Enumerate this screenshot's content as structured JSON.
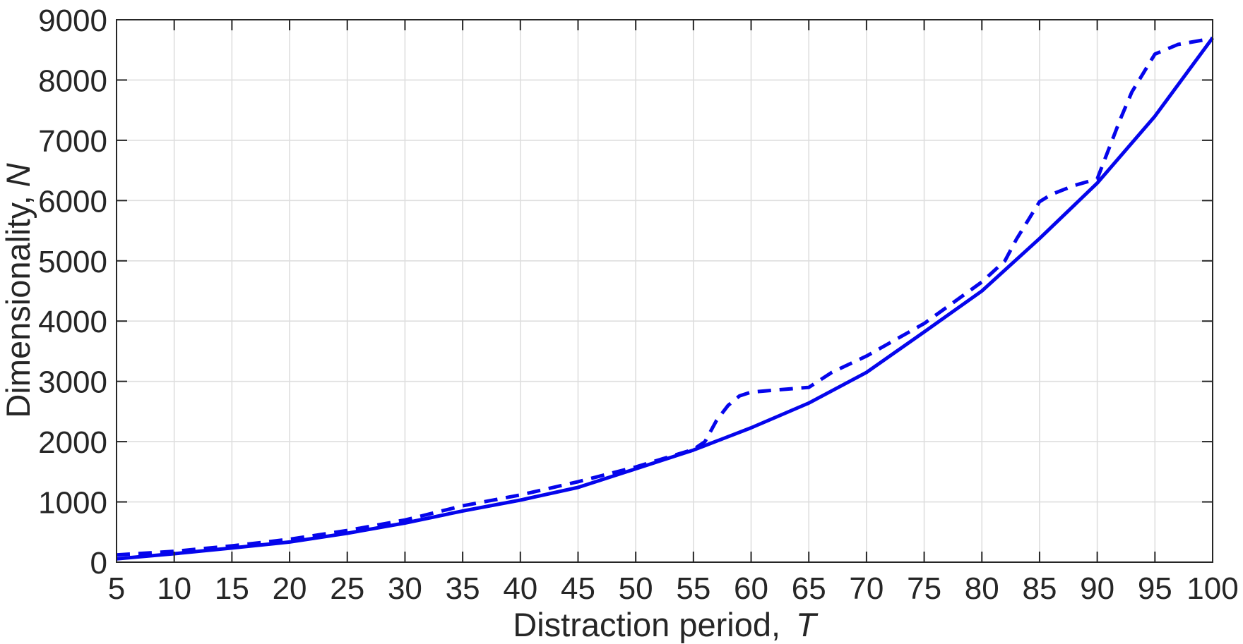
{
  "chart_data": {
    "type": "line",
    "title": "",
    "xlabel": "Distraction period,",
    "xlabel_var": "T",
    "ylabel": "Dimensionality,",
    "ylabel_var": "N",
    "xlim": [
      5,
      100
    ],
    "ylim": [
      0,
      9000
    ],
    "xticks": [
      5,
      10,
      15,
      20,
      25,
      30,
      35,
      40,
      45,
      50,
      55,
      60,
      65,
      70,
      75,
      80,
      85,
      90,
      95,
      100
    ],
    "yticks": [
      0,
      1000,
      2000,
      3000,
      4000,
      5000,
      6000,
      7000,
      8000,
      9000
    ],
    "grid": true,
    "legend_position": "none",
    "series": [
      {
        "name": "solid-curve",
        "style": "solid",
        "color": "#0505ec",
        "x": [
          5,
          10,
          15,
          20,
          25,
          30,
          35,
          40,
          45,
          50,
          55,
          60,
          65,
          70,
          75,
          80,
          85,
          90,
          95,
          100
        ],
        "y": [
          55,
          140,
          235,
          335,
          480,
          650,
          850,
          1030,
          1240,
          1550,
          1860,
          2230,
          2640,
          3150,
          3820,
          4500,
          5370,
          6290,
          7400,
          8700
        ]
      },
      {
        "name": "dashed-curve",
        "style": "dashed",
        "color": "#0505ec",
        "x": [
          5,
          10,
          15,
          20,
          25,
          30,
          35,
          40,
          45,
          50,
          55,
          56,
          57,
          58,
          59,
          60,
          62,
          65,
          67,
          70,
          75,
          80,
          82,
          83,
          85,
          86,
          88,
          90,
          92,
          93,
          95,
          97,
          100
        ],
        "y": [
          120,
          180,
          270,
          380,
          525,
          700,
          935,
          1115,
          1335,
          1580,
          1870,
          2000,
          2350,
          2600,
          2760,
          2820,
          2855,
          2900,
          3150,
          3420,
          3960,
          4650,
          5000,
          5360,
          5980,
          6100,
          6250,
          6360,
          7350,
          7800,
          8430,
          8590,
          8690
        ]
      }
    ]
  },
  "colors": {
    "background": "#ffffff",
    "axis": "#262626",
    "grid": "#dedede",
    "line_blue": "#0505ec",
    "text": "#262626"
  }
}
